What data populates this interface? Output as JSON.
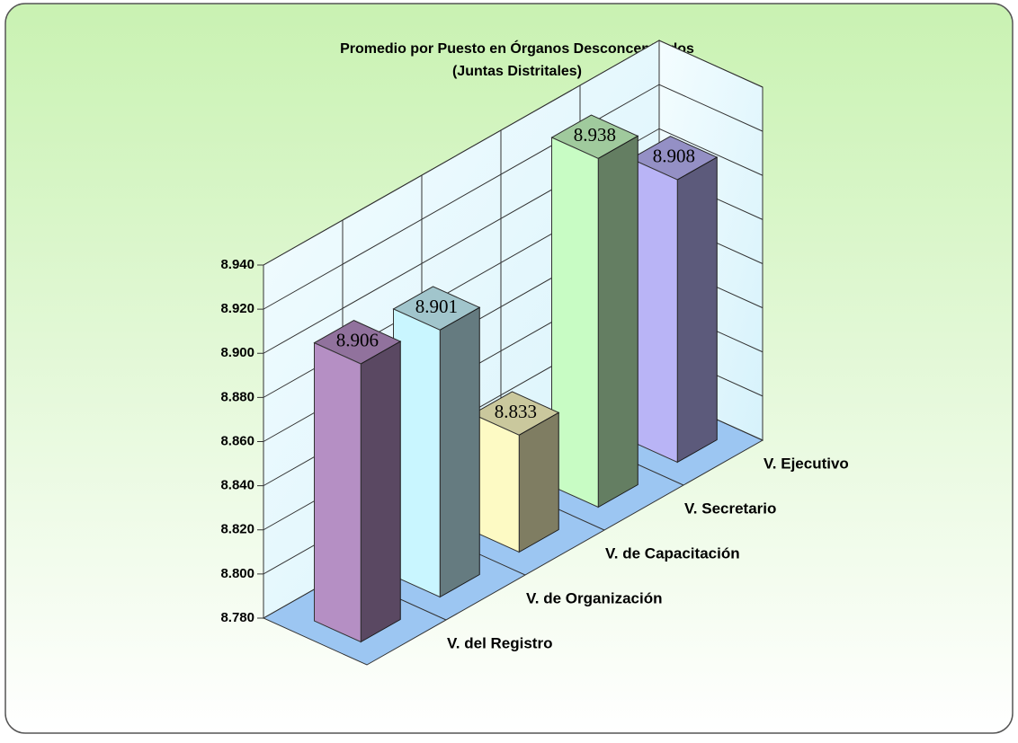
{
  "chart_data": {
    "type": "bar3d",
    "title": "Promedio por Puesto en Órganos Desconcentrados",
    "subtitle": "(Juntas Distritales)",
    "categories": [
      "V. del Registro",
      "V. de Organización",
      "V. de Capacitación",
      "V. Secretario",
      "V. Ejecutivo"
    ],
    "values": [
      8.906,
      8.901,
      8.833,
      8.938,
      8.908
    ],
    "colors": [
      "#b58fc4",
      "#c9f6ff",
      "#fdfac4",
      "#c8fcc4",
      "#b9b4f6"
    ],
    "ylim": [
      8.78,
      8.94
    ],
    "yticks": [
      {
        "value": 8.78,
        "label": "8.780"
      },
      {
        "value": 8.8,
        "label": "8.800"
      },
      {
        "value": 8.82,
        "label": "8.820"
      },
      {
        "value": 8.84,
        "label": "8.840"
      },
      {
        "value": 8.86,
        "label": "8.860"
      },
      {
        "value": 8.88,
        "label": "8.880"
      },
      {
        "value": 8.9,
        "label": "8.900"
      },
      {
        "value": 8.92,
        "label": "8.920"
      },
      {
        "value": 8.94,
        "label": "8.940"
      }
    ],
    "grid": true
  }
}
